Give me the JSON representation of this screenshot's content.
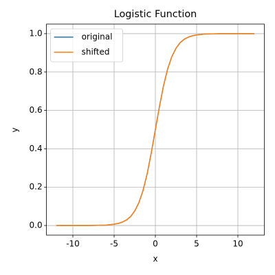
{
  "chart_data": {
    "type": "line",
    "title": "Logistic Function",
    "x_label": "x",
    "y_label": "y",
    "x": [
      -12,
      -11,
      -10,
      -9,
      -8,
      -7,
      -6,
      -5,
      -4.5,
      -4,
      -3.5,
      -3,
      -2.5,
      -2,
      -1.5,
      -1,
      -0.5,
      0,
      0.5,
      1,
      1.5,
      2,
      2.5,
      3,
      3.5,
      4,
      4.5,
      5,
      6,
      7,
      8,
      9,
      10,
      11,
      12
    ],
    "series": [
      {
        "name": "original",
        "color": "#1f77b4",
        "values": [
          0.0,
          0.0,
          0.0,
          0.0,
          0.0,
          0.001,
          0.002,
          0.007,
          0.011,
          0.018,
          0.029,
          0.047,
          0.076,
          0.119,
          0.182,
          0.269,
          0.378,
          0.5,
          0.622,
          0.731,
          0.818,
          0.881,
          0.924,
          0.953,
          0.971,
          0.982,
          0.989,
          0.993,
          0.998,
          0.999,
          1.0,
          1.0,
          1.0,
          1.0,
          1.0
        ]
      },
      {
        "name": "shifted",
        "color": "#ff7f0e",
        "values": [
          0.0,
          0.0,
          0.0,
          0.0,
          0.0,
          0.001,
          0.002,
          0.007,
          0.011,
          0.018,
          0.029,
          0.047,
          0.076,
          0.119,
          0.182,
          0.269,
          0.378,
          0.5,
          0.622,
          0.731,
          0.818,
          0.881,
          0.924,
          0.953,
          0.971,
          0.982,
          0.989,
          0.993,
          0.998,
          0.999,
          1.0,
          1.0,
          1.0,
          1.0,
          1.0
        ]
      }
    ],
    "xlim": [
      -13.2,
      13.2
    ],
    "ylim": [
      -0.05,
      1.05
    ],
    "xticks": [
      -10,
      -5,
      0,
      5,
      10
    ],
    "yticks": [
      {
        "value": 0,
        "label": "0.0"
      },
      {
        "value": 0.2,
        "label": "0.2"
      },
      {
        "value": 0.4,
        "label": "0.4"
      },
      {
        "value": 0.6,
        "label": "0.6"
      },
      {
        "value": 0.8,
        "label": "0.8"
      },
      {
        "value": 1,
        "label": "1.0"
      }
    ],
    "grid": true,
    "legend": "upper-left"
  }
}
